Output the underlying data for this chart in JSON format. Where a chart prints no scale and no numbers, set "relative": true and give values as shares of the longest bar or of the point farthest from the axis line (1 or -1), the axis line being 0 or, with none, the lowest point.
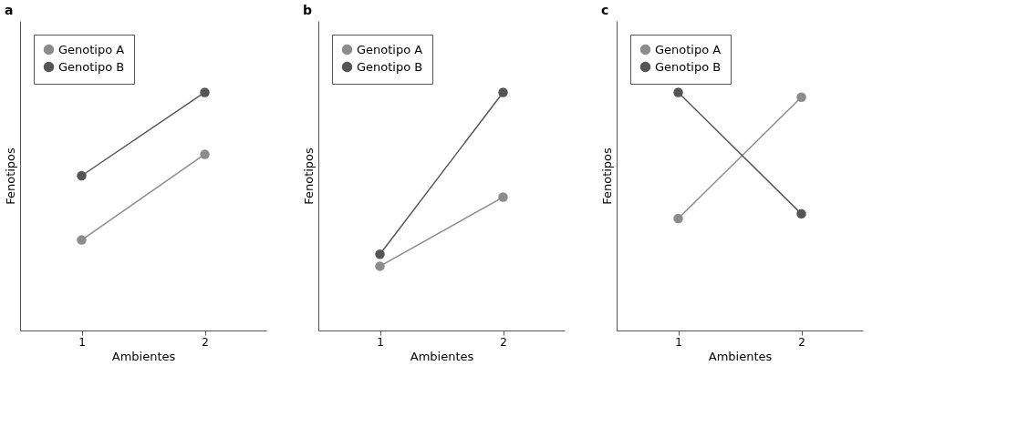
{
  "chart_data": [
    {
      "type": "line",
      "title": "a",
      "xlabel": "Ambientes",
      "ylabel": "Fenotipos",
      "categories": [
        "1",
        "2"
      ],
      "relative": true,
      "marker": "circle",
      "legend": "top left",
      "series": [
        {
          "name": "Genotipo A",
          "color": "#8c8c8c",
          "values": [
            0.38,
            0.74
          ]
        },
        {
          "name": "Genotipo B",
          "color": "#555555",
          "values": [
            0.65,
            1
          ]
        }
      ]
    },
    {
      "type": "line",
      "title": "b",
      "xlabel": "Ambientes",
      "ylabel": "Fenotipos",
      "categories": [
        "1",
        "2"
      ],
      "relative": true,
      "marker": "circle",
      "legend": "top left",
      "series": [
        {
          "name": "Genotipo A",
          "color": "#8c8c8c",
          "values": [
            0.27,
            0.56
          ]
        },
        {
          "name": "Genotipo B",
          "color": "#555555",
          "values": [
            0.32,
            1
          ]
        }
      ]
    },
    {
      "type": "line",
      "title": "c",
      "xlabel": "Ambientes",
      "ylabel": "Fenotipos",
      "categories": [
        "1",
        "2"
      ],
      "relative": true,
      "marker": "circle",
      "legend": "top left",
      "series": [
        {
          "name": "Genotipo A",
          "color": "#8c8c8c",
          "values": [
            0.47,
            0.98
          ]
        },
        {
          "name": "Genotipo B",
          "color": "#555555",
          "values": [
            1,
            0.49
          ]
        }
      ]
    }
  ]
}
